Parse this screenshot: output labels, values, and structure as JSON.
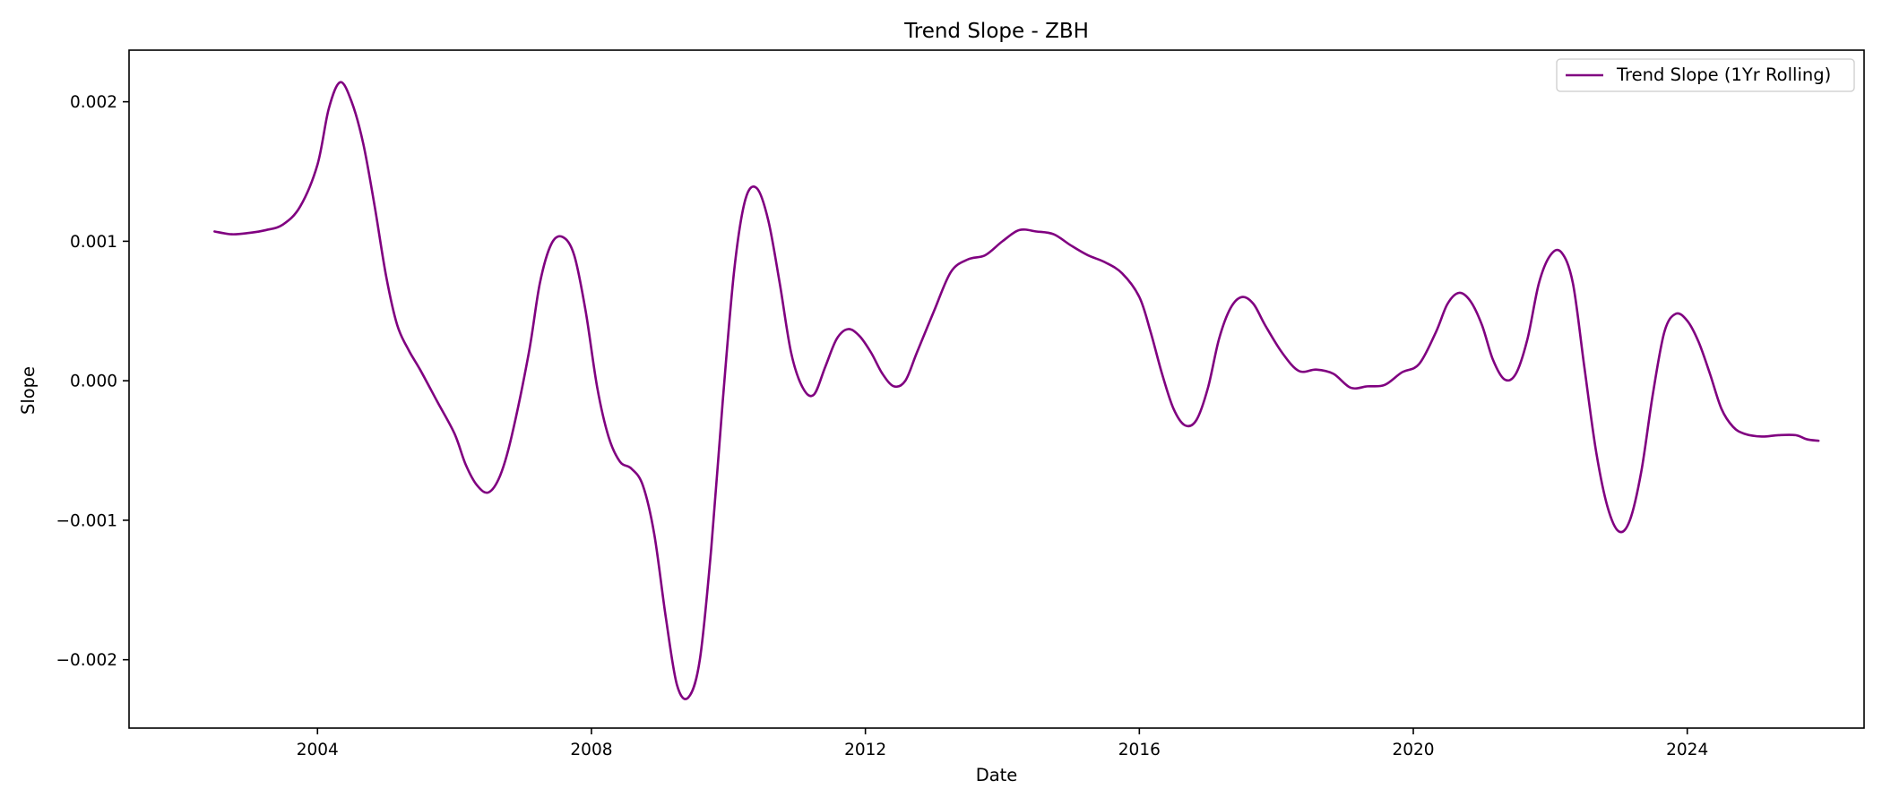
{
  "chart_data": {
    "type": "line",
    "title": "Trend Slope - ZBH",
    "xlabel": "Date",
    "ylabel": "Slope",
    "x_axis": {
      "type": "date",
      "range": [
        "2001-04-01",
        "2026-08-01"
      ],
      "ticks": [
        {
          "date": "2004-01-01",
          "label": "2004"
        },
        {
          "date": "2008-01-01",
          "label": "2008"
        },
        {
          "date": "2012-01-01",
          "label": "2012"
        },
        {
          "date": "2016-01-01",
          "label": "2016"
        },
        {
          "date": "2020-01-01",
          "label": "2020"
        },
        {
          "date": "2024-01-01",
          "label": "2024"
        }
      ]
    },
    "y_axis": {
      "range": [
        -0.00249,
        0.00237
      ],
      "ticks": [
        {
          "value": 0.002,
          "label": "0.002"
        },
        {
          "value": 0.001,
          "label": "0.001"
        },
        {
          "value": 0.0,
          "label": "0.000"
        },
        {
          "value": -0.001,
          "label": "−0.001"
        },
        {
          "value": -0.002,
          "label": "−0.002"
        }
      ]
    },
    "grid": false,
    "legend": {
      "position": "top-right"
    },
    "series": [
      {
        "name": "Trend Slope (1Yr Rolling)",
        "color": "#800080",
        "points": [
          [
            "2002-07-01",
            0.00107
          ],
          [
            "2002-10-01",
            0.00105
          ],
          [
            "2003-01-01",
            0.00106
          ],
          [
            "2003-04-01",
            0.00108
          ],
          [
            "2003-07-01",
            0.00112
          ],
          [
            "2003-10-01",
            0.00125
          ],
          [
            "2004-01-01",
            0.00155
          ],
          [
            "2004-03-01",
            0.00195
          ],
          [
            "2004-05-01",
            0.00214
          ],
          [
            "2004-07-01",
            0.002
          ],
          [
            "2004-09-01",
            0.0017
          ],
          [
            "2004-11-01",
            0.00125
          ],
          [
            "2005-01-01",
            0.00075
          ],
          [
            "2005-03-01",
            0.0004
          ],
          [
            "2005-05-01",
            0.00022
          ],
          [
            "2005-07-01",
            8e-05
          ],
          [
            "2005-10-01",
            -0.00015
          ],
          [
            "2006-01-01",
            -0.00038
          ],
          [
            "2006-03-01",
            -0.0006
          ],
          [
            "2006-05-01",
            -0.00075
          ],
          [
            "2006-07-01",
            -0.0008
          ],
          [
            "2006-09-01",
            -0.00068
          ],
          [
            "2006-11-01",
            -0.0004
          ],
          [
            "2007-02-01",
            0.0002
          ],
          [
            "2007-04-01",
            0.0007
          ],
          [
            "2007-06-01",
            0.00098
          ],
          [
            "2007-08-01",
            0.00103
          ],
          [
            "2007-10-01",
            0.0009
          ],
          [
            "2007-12-01",
            0.0005
          ],
          [
            "2008-02-01",
            -5e-05
          ],
          [
            "2008-04-01",
            -0.0004
          ],
          [
            "2008-06-01",
            -0.00058
          ],
          [
            "2008-08-01",
            -0.00063
          ],
          [
            "2008-10-01",
            -0.00075
          ],
          [
            "2008-12-01",
            -0.0011
          ],
          [
            "2009-02-01",
            -0.0017
          ],
          [
            "2009-04-01",
            -0.00218
          ],
          [
            "2009-06-01",
            -0.00227
          ],
          [
            "2009-08-01",
            -0.002
          ],
          [
            "2009-10-01",
            -0.0012
          ],
          [
            "2009-12-01",
            -0.00015
          ],
          [
            "2010-02-01",
            0.0008
          ],
          [
            "2010-04-01",
            0.0013
          ],
          [
            "2010-06-01",
            0.00138
          ],
          [
            "2010-08-01",
            0.00115
          ],
          [
            "2010-10-01",
            0.0007
          ],
          [
            "2010-12-01",
            0.0002
          ],
          [
            "2011-02-01",
            -5e-05
          ],
          [
            "2011-04-01",
            -0.0001
          ],
          [
            "2011-06-01",
            0.0001
          ],
          [
            "2011-08-01",
            0.0003
          ],
          [
            "2011-10-01",
            0.00037
          ],
          [
            "2011-12-01",
            0.00032
          ],
          [
            "2012-02-01",
            0.0002
          ],
          [
            "2012-04-01",
            5e-05
          ],
          [
            "2012-06-01",
            -4e-05
          ],
          [
            "2012-08-01",
            0.0
          ],
          [
            "2012-10-01",
            0.0002
          ],
          [
            "2013-01-01",
            0.0005
          ],
          [
            "2013-04-01",
            0.00078
          ],
          [
            "2013-07-01",
            0.00087
          ],
          [
            "2013-10-01",
            0.0009
          ],
          [
            "2014-01-01",
            0.001
          ],
          [
            "2014-04-01",
            0.00108
          ],
          [
            "2014-07-01",
            0.00107
          ],
          [
            "2014-10-01",
            0.00105
          ],
          [
            "2015-01-01",
            0.00097
          ],
          [
            "2015-04-01",
            0.0009
          ],
          [
            "2015-07-01",
            0.00085
          ],
          [
            "2015-10-01",
            0.00077
          ],
          [
            "2016-01-01",
            0.0006
          ],
          [
            "2016-03-01",
            0.00035
          ],
          [
            "2016-05-01",
            5e-05
          ],
          [
            "2016-07-01",
            -0.0002
          ],
          [
            "2016-09-01",
            -0.00032
          ],
          [
            "2016-11-01",
            -0.00028
          ],
          [
            "2017-01-01",
            -5e-05
          ],
          [
            "2017-03-01",
            0.0003
          ],
          [
            "2017-05-01",
            0.00052
          ],
          [
            "2017-07-01",
            0.0006
          ],
          [
            "2017-09-01",
            0.00055
          ],
          [
            "2017-11-01",
            0.0004
          ],
          [
            "2018-02-01",
            0.0002
          ],
          [
            "2018-05-01",
            7e-05
          ],
          [
            "2018-08-01",
            8e-05
          ],
          [
            "2018-11-01",
            5e-05
          ],
          [
            "2019-02-01",
            -5e-05
          ],
          [
            "2019-05-01",
            -4e-05
          ],
          [
            "2019-08-01",
            -3e-05
          ],
          [
            "2019-11-01",
            6e-05
          ],
          [
            "2020-02-01",
            0.00012
          ],
          [
            "2020-05-01",
            0.00035
          ],
          [
            "2020-07-01",
            0.00055
          ],
          [
            "2020-09-01",
            0.00063
          ],
          [
            "2020-11-01",
            0.00057
          ],
          [
            "2021-01-01",
            0.0004
          ],
          [
            "2021-03-01",
            0.00015
          ],
          [
            "2021-05-01",
            1e-05
          ],
          [
            "2021-07-01",
            5e-05
          ],
          [
            "2021-09-01",
            0.0003
          ],
          [
            "2021-11-01",
            0.0007
          ],
          [
            "2022-01-01",
            0.0009
          ],
          [
            "2022-03-01",
            0.00092
          ],
          [
            "2022-05-01",
            0.0007
          ],
          [
            "2022-07-01",
            0.0001
          ],
          [
            "2022-09-01",
            -0.0005
          ],
          [
            "2022-11-01",
            -0.0009
          ],
          [
            "2023-01-01",
            -0.00108
          ],
          [
            "2023-03-01",
            -0.001
          ],
          [
            "2023-05-01",
            -0.00065
          ],
          [
            "2023-07-01",
            -0.0001
          ],
          [
            "2023-09-01",
            0.00035
          ],
          [
            "2023-11-01",
            0.00048
          ],
          [
            "2024-01-01",
            0.00043
          ],
          [
            "2024-03-01",
            0.00028
          ],
          [
            "2024-05-01",
            5e-05
          ],
          [
            "2024-07-01",
            -0.0002
          ],
          [
            "2024-09-01",
            -0.00033
          ],
          [
            "2024-11-01",
            -0.00038
          ],
          [
            "2025-02-01",
            -0.0004
          ],
          [
            "2025-05-01",
            -0.00039
          ],
          [
            "2025-08-01",
            -0.00039
          ],
          [
            "2025-10-01",
            -0.00042
          ],
          [
            "2025-12-01",
            -0.00043
          ]
        ]
      }
    ]
  }
}
